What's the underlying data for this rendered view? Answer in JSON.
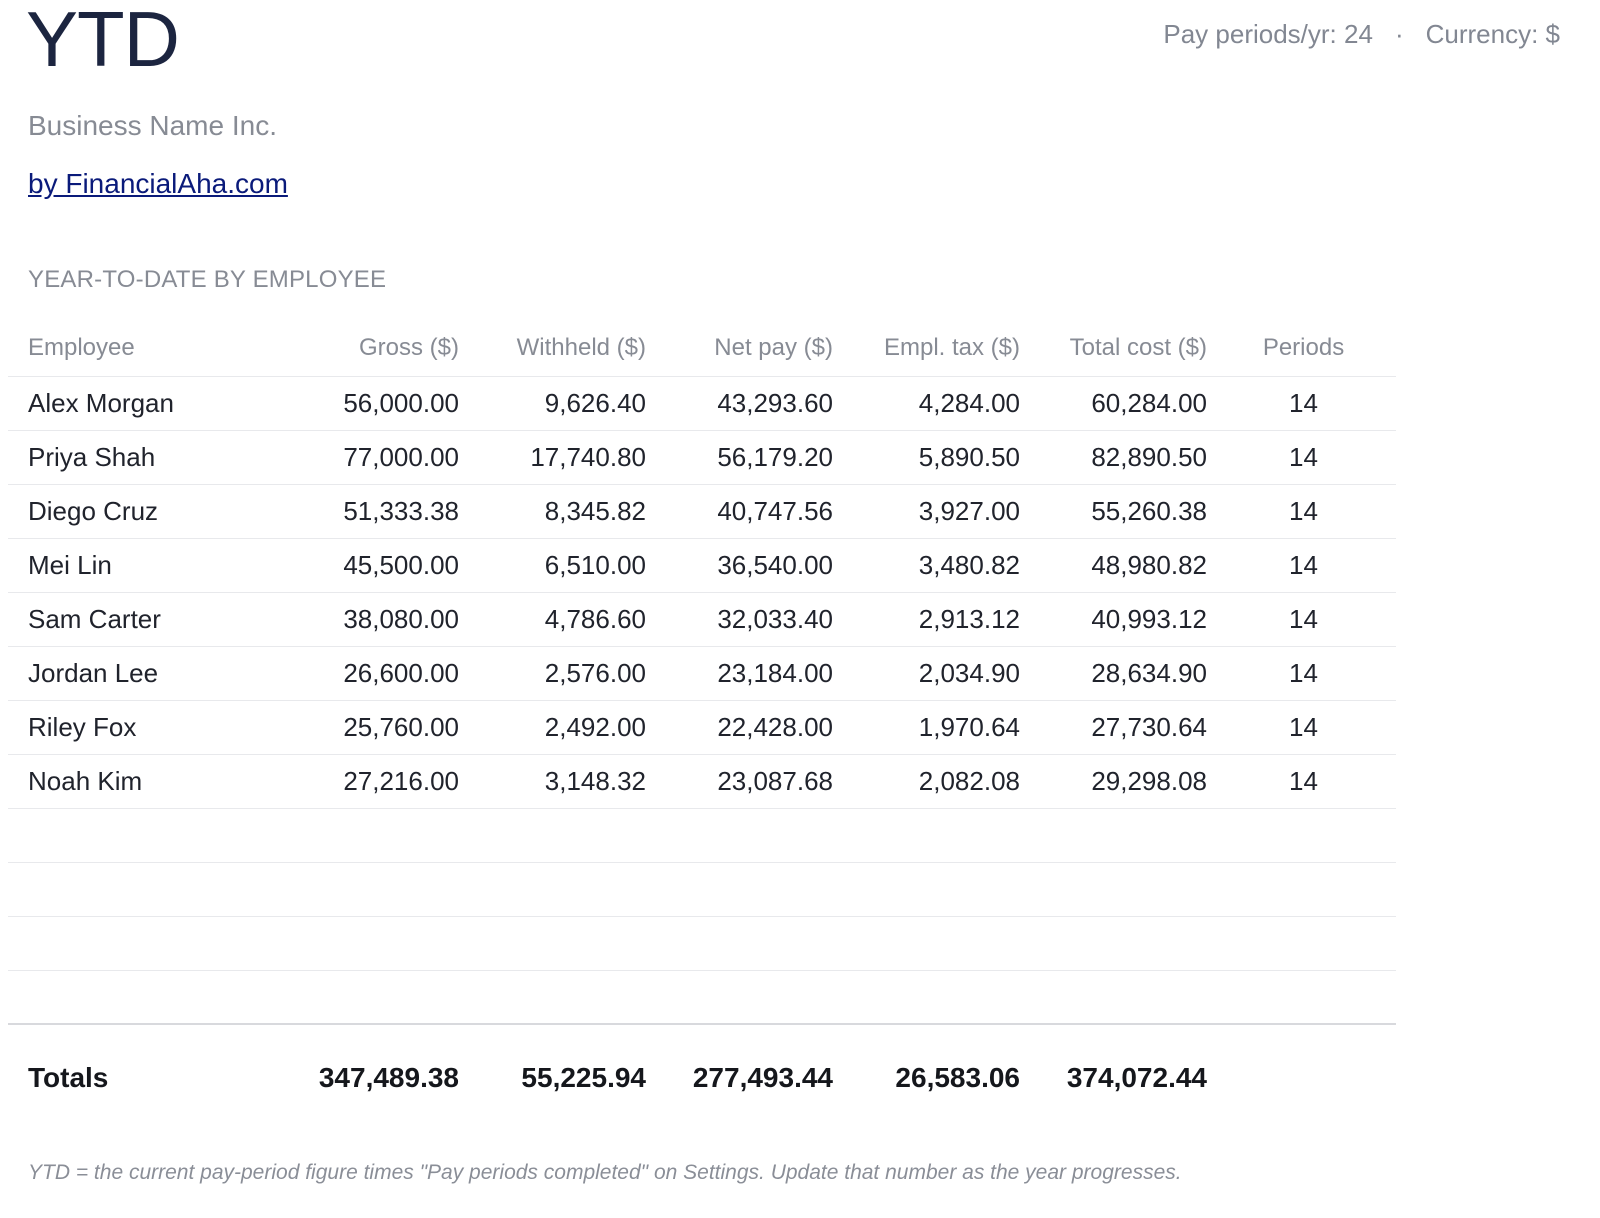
{
  "header": {
    "title": "YTD",
    "pay_periods": "Pay periods/yr: 24",
    "separator": "·",
    "currency": "Currency: $"
  },
  "business_name": "Business Name Inc.",
  "by_link": "by FinancialAha.com",
  "section_heading": "YEAR-TO-DATE BY EMPLOYEE",
  "table": {
    "headers": {
      "employee": "Employee",
      "gross": "Gross ($)",
      "withheld": "Withheld ($)",
      "net": "Net pay ($)",
      "tax": "Empl. tax ($)",
      "cost": "Total cost ($)",
      "periods": "Periods"
    },
    "rows": [
      {
        "name": "Alex Morgan",
        "gross": "56,000.00",
        "withheld": "9,626.40",
        "net": "43,293.60",
        "tax": "4,284.00",
        "cost": "60,284.00",
        "periods": "14"
      },
      {
        "name": "Priya Shah",
        "gross": "77,000.00",
        "withheld": "17,740.80",
        "net": "56,179.20",
        "tax": "5,890.50",
        "cost": "82,890.50",
        "periods": "14"
      },
      {
        "name": "Diego Cruz",
        "gross": "51,333.38",
        "withheld": "8,345.82",
        "net": "40,747.56",
        "tax": "3,927.00",
        "cost": "55,260.38",
        "periods": "14"
      },
      {
        "name": "Mei Lin",
        "gross": "45,500.00",
        "withheld": "6,510.00",
        "net": "36,540.00",
        "tax": "3,480.82",
        "cost": "48,980.82",
        "periods": "14"
      },
      {
        "name": "Sam Carter",
        "gross": "38,080.00",
        "withheld": "4,786.60",
        "net": "32,033.40",
        "tax": "2,913.12",
        "cost": "40,993.12",
        "periods": "14"
      },
      {
        "name": "Jordan Lee",
        "gross": "26,600.00",
        "withheld": "2,576.00",
        "net": "23,184.00",
        "tax": "2,034.90",
        "cost": "28,634.90",
        "periods": "14"
      },
      {
        "name": "Riley Fox",
        "gross": "25,760.00",
        "withheld": "2,492.00",
        "net": "22,428.00",
        "tax": "1,970.64",
        "cost": "27,730.64",
        "periods": "14"
      },
      {
        "name": "Noah Kim",
        "gross": "27,216.00",
        "withheld": "3,148.32",
        "net": "23,087.68",
        "tax": "2,082.08",
        "cost": "29,298.08",
        "periods": "14"
      }
    ],
    "totals": {
      "label": "Totals",
      "gross": "347,489.38",
      "withheld": "55,225.94",
      "net": "277,493.44",
      "tax": "26,583.06",
      "cost": "374,072.44"
    }
  },
  "footnote": "YTD = the current pay-period figure times \"Pay periods completed\" on Settings. Update that number as the year progresses."
}
